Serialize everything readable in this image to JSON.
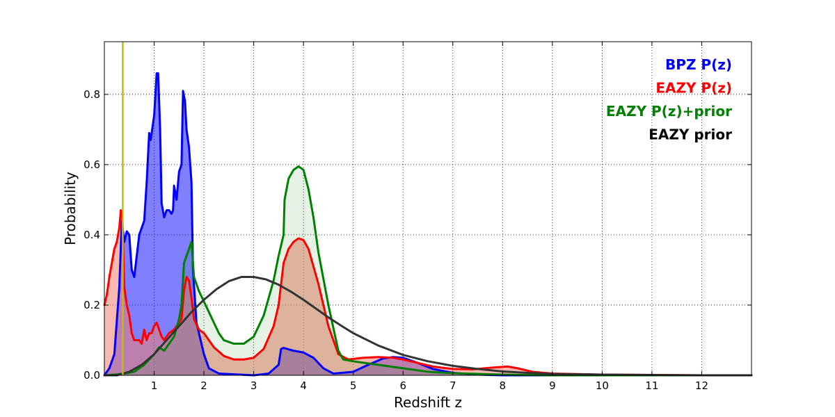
{
  "chart_data": {
    "type": "area",
    "xlabel": "Redshift z",
    "ylabel": "Probability",
    "xlim": [
      0,
      13
    ],
    "ylim": [
      0,
      0.95
    ],
    "xticks": [
      1,
      2,
      3,
      4,
      5,
      6,
      7,
      8,
      9,
      10,
      11,
      12
    ],
    "yticks": [
      0.0,
      0.2,
      0.4,
      0.6,
      0.8
    ],
    "ytick_labels": [
      "0.0",
      "0.2",
      "0.4",
      "0.6",
      "0.8"
    ],
    "grid": true,
    "legend_position": "top-right",
    "vertical_line": {
      "x": 0.37,
      "color": "#bfbf00"
    },
    "series": [
      {
        "name": "BPZ P(z)",
        "color": "#0000ff",
        "fill": "#0000ff",
        "fill_opacity": 0.5,
        "points": [
          [
            0.0,
            0.0
          ],
          [
            0.1,
            0.02
          ],
          [
            0.2,
            0.06
          ],
          [
            0.3,
            0.25
          ],
          [
            0.35,
            0.44
          ],
          [
            0.4,
            0.38
          ],
          [
            0.45,
            0.41
          ],
          [
            0.5,
            0.4
          ],
          [
            0.55,
            0.3
          ],
          [
            0.6,
            0.28
          ],
          [
            0.7,
            0.4
          ],
          [
            0.8,
            0.44
          ],
          [
            0.85,
            0.55
          ],
          [
            0.9,
            0.69
          ],
          [
            0.93,
            0.67
          ],
          [
            1.0,
            0.74
          ],
          [
            1.05,
            0.86
          ],
          [
            1.08,
            0.86
          ],
          [
            1.12,
            0.7
          ],
          [
            1.15,
            0.49
          ],
          [
            1.2,
            0.45
          ],
          [
            1.25,
            0.47
          ],
          [
            1.3,
            0.47
          ],
          [
            1.35,
            0.46
          ],
          [
            1.38,
            0.47
          ],
          [
            1.4,
            0.54
          ],
          [
            1.45,
            0.5
          ],
          [
            1.5,
            0.58
          ],
          [
            1.55,
            0.6
          ],
          [
            1.58,
            0.81
          ],
          [
            1.62,
            0.78
          ],
          [
            1.65,
            0.7
          ],
          [
            1.7,
            0.65
          ],
          [
            1.75,
            0.55
          ],
          [
            1.78,
            0.3
          ],
          [
            1.85,
            0.15
          ],
          [
            2.0,
            0.06
          ],
          [
            2.1,
            0.02
          ],
          [
            2.3,
            0.005
          ],
          [
            3.0,
            0.0
          ],
          [
            3.3,
            0.005
          ],
          [
            3.5,
            0.03
          ],
          [
            3.55,
            0.075
          ],
          [
            3.6,
            0.078
          ],
          [
            3.8,
            0.07
          ],
          [
            4.0,
            0.065
          ],
          [
            4.2,
            0.05
          ],
          [
            4.4,
            0.02
          ],
          [
            4.6,
            0.005
          ],
          [
            5.0,
            0.01
          ],
          [
            5.3,
            0.03
          ],
          [
            5.6,
            0.048
          ],
          [
            5.8,
            0.052
          ],
          [
            6.0,
            0.05
          ],
          [
            6.3,
            0.035
          ],
          [
            6.6,
            0.018
          ],
          [
            7.0,
            0.007
          ],
          [
            7.5,
            0.002
          ],
          [
            8.0,
            0.0
          ],
          [
            12.0,
            0.0
          ],
          [
            13.0,
            0.0
          ]
        ]
      },
      {
        "name": "EAZY P(z)",
        "color": "#ff0000",
        "fill": "#f08070",
        "fill_opacity": 0.55,
        "points": [
          [
            0.0,
            0.2
          ],
          [
            0.05,
            0.23
          ],
          [
            0.1,
            0.28
          ],
          [
            0.15,
            0.32
          ],
          [
            0.2,
            0.36
          ],
          [
            0.25,
            0.38
          ],
          [
            0.3,
            0.42
          ],
          [
            0.33,
            0.47
          ],
          [
            0.36,
            0.45
          ],
          [
            0.4,
            0.25
          ],
          [
            0.45,
            0.2
          ],
          [
            0.5,
            0.17
          ],
          [
            0.55,
            0.12
          ],
          [
            0.6,
            0.1
          ],
          [
            0.7,
            0.1
          ],
          [
            0.75,
            0.09
          ],
          [
            0.8,
            0.13
          ],
          [
            0.85,
            0.1
          ],
          [
            0.9,
            0.12
          ],
          [
            0.95,
            0.12
          ],
          [
            1.0,
            0.14
          ],
          [
            1.05,
            0.15
          ],
          [
            1.1,
            0.13
          ],
          [
            1.15,
            0.11
          ],
          [
            1.2,
            0.1
          ],
          [
            1.3,
            0.12
          ],
          [
            1.4,
            0.13
          ],
          [
            1.5,
            0.15
          ],
          [
            1.55,
            0.16
          ],
          [
            1.6,
            0.24
          ],
          [
            1.65,
            0.28
          ],
          [
            1.7,
            0.27
          ],
          [
            1.75,
            0.22
          ],
          [
            1.8,
            0.16
          ],
          [
            1.9,
            0.13
          ],
          [
            2.0,
            0.12
          ],
          [
            2.1,
            0.1
          ],
          [
            2.2,
            0.08
          ],
          [
            2.4,
            0.055
          ],
          [
            2.6,
            0.045
          ],
          [
            2.8,
            0.045
          ],
          [
            3.0,
            0.05
          ],
          [
            3.2,
            0.075
          ],
          [
            3.4,
            0.14
          ],
          [
            3.5,
            0.2
          ],
          [
            3.6,
            0.32
          ],
          [
            3.7,
            0.36
          ],
          [
            3.8,
            0.38
          ],
          [
            3.9,
            0.39
          ],
          [
            4.0,
            0.385
          ],
          [
            4.1,
            0.36
          ],
          [
            4.3,
            0.26
          ],
          [
            4.5,
            0.14
          ],
          [
            4.7,
            0.06
          ],
          [
            4.9,
            0.045
          ],
          [
            5.2,
            0.05
          ],
          [
            5.5,
            0.052
          ],
          [
            5.8,
            0.05
          ],
          [
            6.0,
            0.045
          ],
          [
            6.3,
            0.035
          ],
          [
            6.6,
            0.025
          ],
          [
            7.0,
            0.018
          ],
          [
            7.4,
            0.017
          ],
          [
            7.8,
            0.022
          ],
          [
            8.1,
            0.025
          ],
          [
            8.3,
            0.02
          ],
          [
            8.6,
            0.01
          ],
          [
            9.0,
            0.005
          ],
          [
            10.0,
            0.002
          ],
          [
            12.0,
            0.0
          ],
          [
            13.0,
            0.0
          ]
        ]
      },
      {
        "name": "EAZY P(z)+prior",
        "color": "#008000",
        "fill": "#008000",
        "fill_opacity": 0.1,
        "points": [
          [
            0.0,
            0.0
          ],
          [
            0.2,
            0.002
          ],
          [
            0.4,
            0.005
          ],
          [
            0.6,
            0.01
          ],
          [
            0.8,
            0.03
          ],
          [
            1.0,
            0.06
          ],
          [
            1.1,
            0.08
          ],
          [
            1.2,
            0.07
          ],
          [
            1.3,
            0.09
          ],
          [
            1.4,
            0.11
          ],
          [
            1.5,
            0.16
          ],
          [
            1.55,
            0.2
          ],
          [
            1.6,
            0.32
          ],
          [
            1.7,
            0.36
          ],
          [
            1.75,
            0.38
          ],
          [
            1.8,
            0.28
          ],
          [
            1.9,
            0.24
          ],
          [
            2.0,
            0.21
          ],
          [
            2.1,
            0.18
          ],
          [
            2.2,
            0.15
          ],
          [
            2.3,
            0.12
          ],
          [
            2.4,
            0.1
          ],
          [
            2.6,
            0.09
          ],
          [
            2.8,
            0.09
          ],
          [
            3.0,
            0.11
          ],
          [
            3.2,
            0.17
          ],
          [
            3.4,
            0.27
          ],
          [
            3.5,
            0.34
          ],
          [
            3.6,
            0.4
          ],
          [
            3.62,
            0.5
          ],
          [
            3.7,
            0.56
          ],
          [
            3.8,
            0.585
          ],
          [
            3.9,
            0.595
          ],
          [
            4.0,
            0.585
          ],
          [
            4.1,
            0.53
          ],
          [
            4.2,
            0.45
          ],
          [
            4.3,
            0.35
          ],
          [
            4.5,
            0.2
          ],
          [
            4.7,
            0.07
          ],
          [
            4.8,
            0.045
          ],
          [
            5.0,
            0.04
          ],
          [
            5.5,
            0.03
          ],
          [
            6.0,
            0.02
          ],
          [
            6.5,
            0.01
          ],
          [
            7.0,
            0.006
          ],
          [
            8.0,
            0.002
          ],
          [
            9.0,
            0.0
          ],
          [
            13.0,
            0.0
          ]
        ]
      },
      {
        "name": "EAZY prior",
        "color": "#333333",
        "fill": "none",
        "fill_opacity": 0,
        "points": [
          [
            0.0,
            0.0
          ],
          [
            0.25,
            0.0
          ],
          [
            0.5,
            0.01
          ],
          [
            0.75,
            0.03
          ],
          [
            1.0,
            0.06
          ],
          [
            1.25,
            0.1
          ],
          [
            1.5,
            0.14
          ],
          [
            1.75,
            0.18
          ],
          [
            2.0,
            0.215
          ],
          [
            2.25,
            0.245
          ],
          [
            2.5,
            0.268
          ],
          [
            2.75,
            0.28
          ],
          [
            3.0,
            0.28
          ],
          [
            3.25,
            0.273
          ],
          [
            3.5,
            0.258
          ],
          [
            3.75,
            0.238
          ],
          [
            4.0,
            0.215
          ],
          [
            4.25,
            0.19
          ],
          [
            4.5,
            0.165
          ],
          [
            4.75,
            0.142
          ],
          [
            5.0,
            0.12
          ],
          [
            5.5,
            0.085
          ],
          [
            6.0,
            0.058
          ],
          [
            6.5,
            0.04
          ],
          [
            7.0,
            0.027
          ],
          [
            7.5,
            0.018
          ],
          [
            8.0,
            0.011
          ],
          [
            8.5,
            0.007
          ],
          [
            9.0,
            0.004
          ],
          [
            10.0,
            0.002
          ],
          [
            11.0,
            0.001
          ],
          [
            12.0,
            0.0
          ],
          [
            13.0,
            0.0
          ]
        ]
      }
    ]
  },
  "legend": [
    {
      "label": "BPZ P(z)",
      "color": "#0000ff"
    },
    {
      "label": "EAZY P(z)",
      "color": "#ff0000"
    },
    {
      "label": "EAZY P(z)+prior",
      "color": "#008000"
    },
    {
      "label": "EAZY prior",
      "color": "#000000"
    }
  ]
}
